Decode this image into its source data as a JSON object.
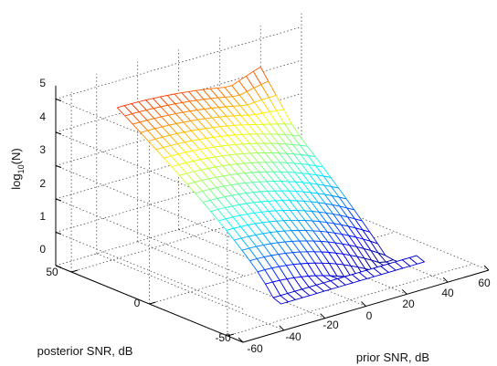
{
  "chart_data": {
    "type": "surface",
    "style": "mesh",
    "colormap": "jet",
    "title": "",
    "xlabel": "prior SNR, dB",
    "ylabel": "posterior SNR, dB",
    "zlabel": "log10(N)",
    "zlabel_parts": {
      "base": "log",
      "sub": "10",
      "rest": "(N)"
    },
    "xlim": [
      -60,
      60
    ],
    "ylim": [
      -60,
      60
    ],
    "zlim": [
      0,
      5
    ],
    "x_ticks": [
      "-60",
      "-40",
      "-20",
      "0",
      "20",
      "40",
      "60"
    ],
    "y_ticks": [
      "-50",
      "0",
      "50"
    ],
    "z_ticks": [
      "0",
      "1",
      "2",
      "3",
      "4",
      "5"
    ],
    "grid": true,
    "surface_summary": {
      "ridge_value_at_high_posterior_snr": 4.2,
      "spike_peak_value": 5.3,
      "value_at_low_posterior_snr": 0.5
    }
  }
}
